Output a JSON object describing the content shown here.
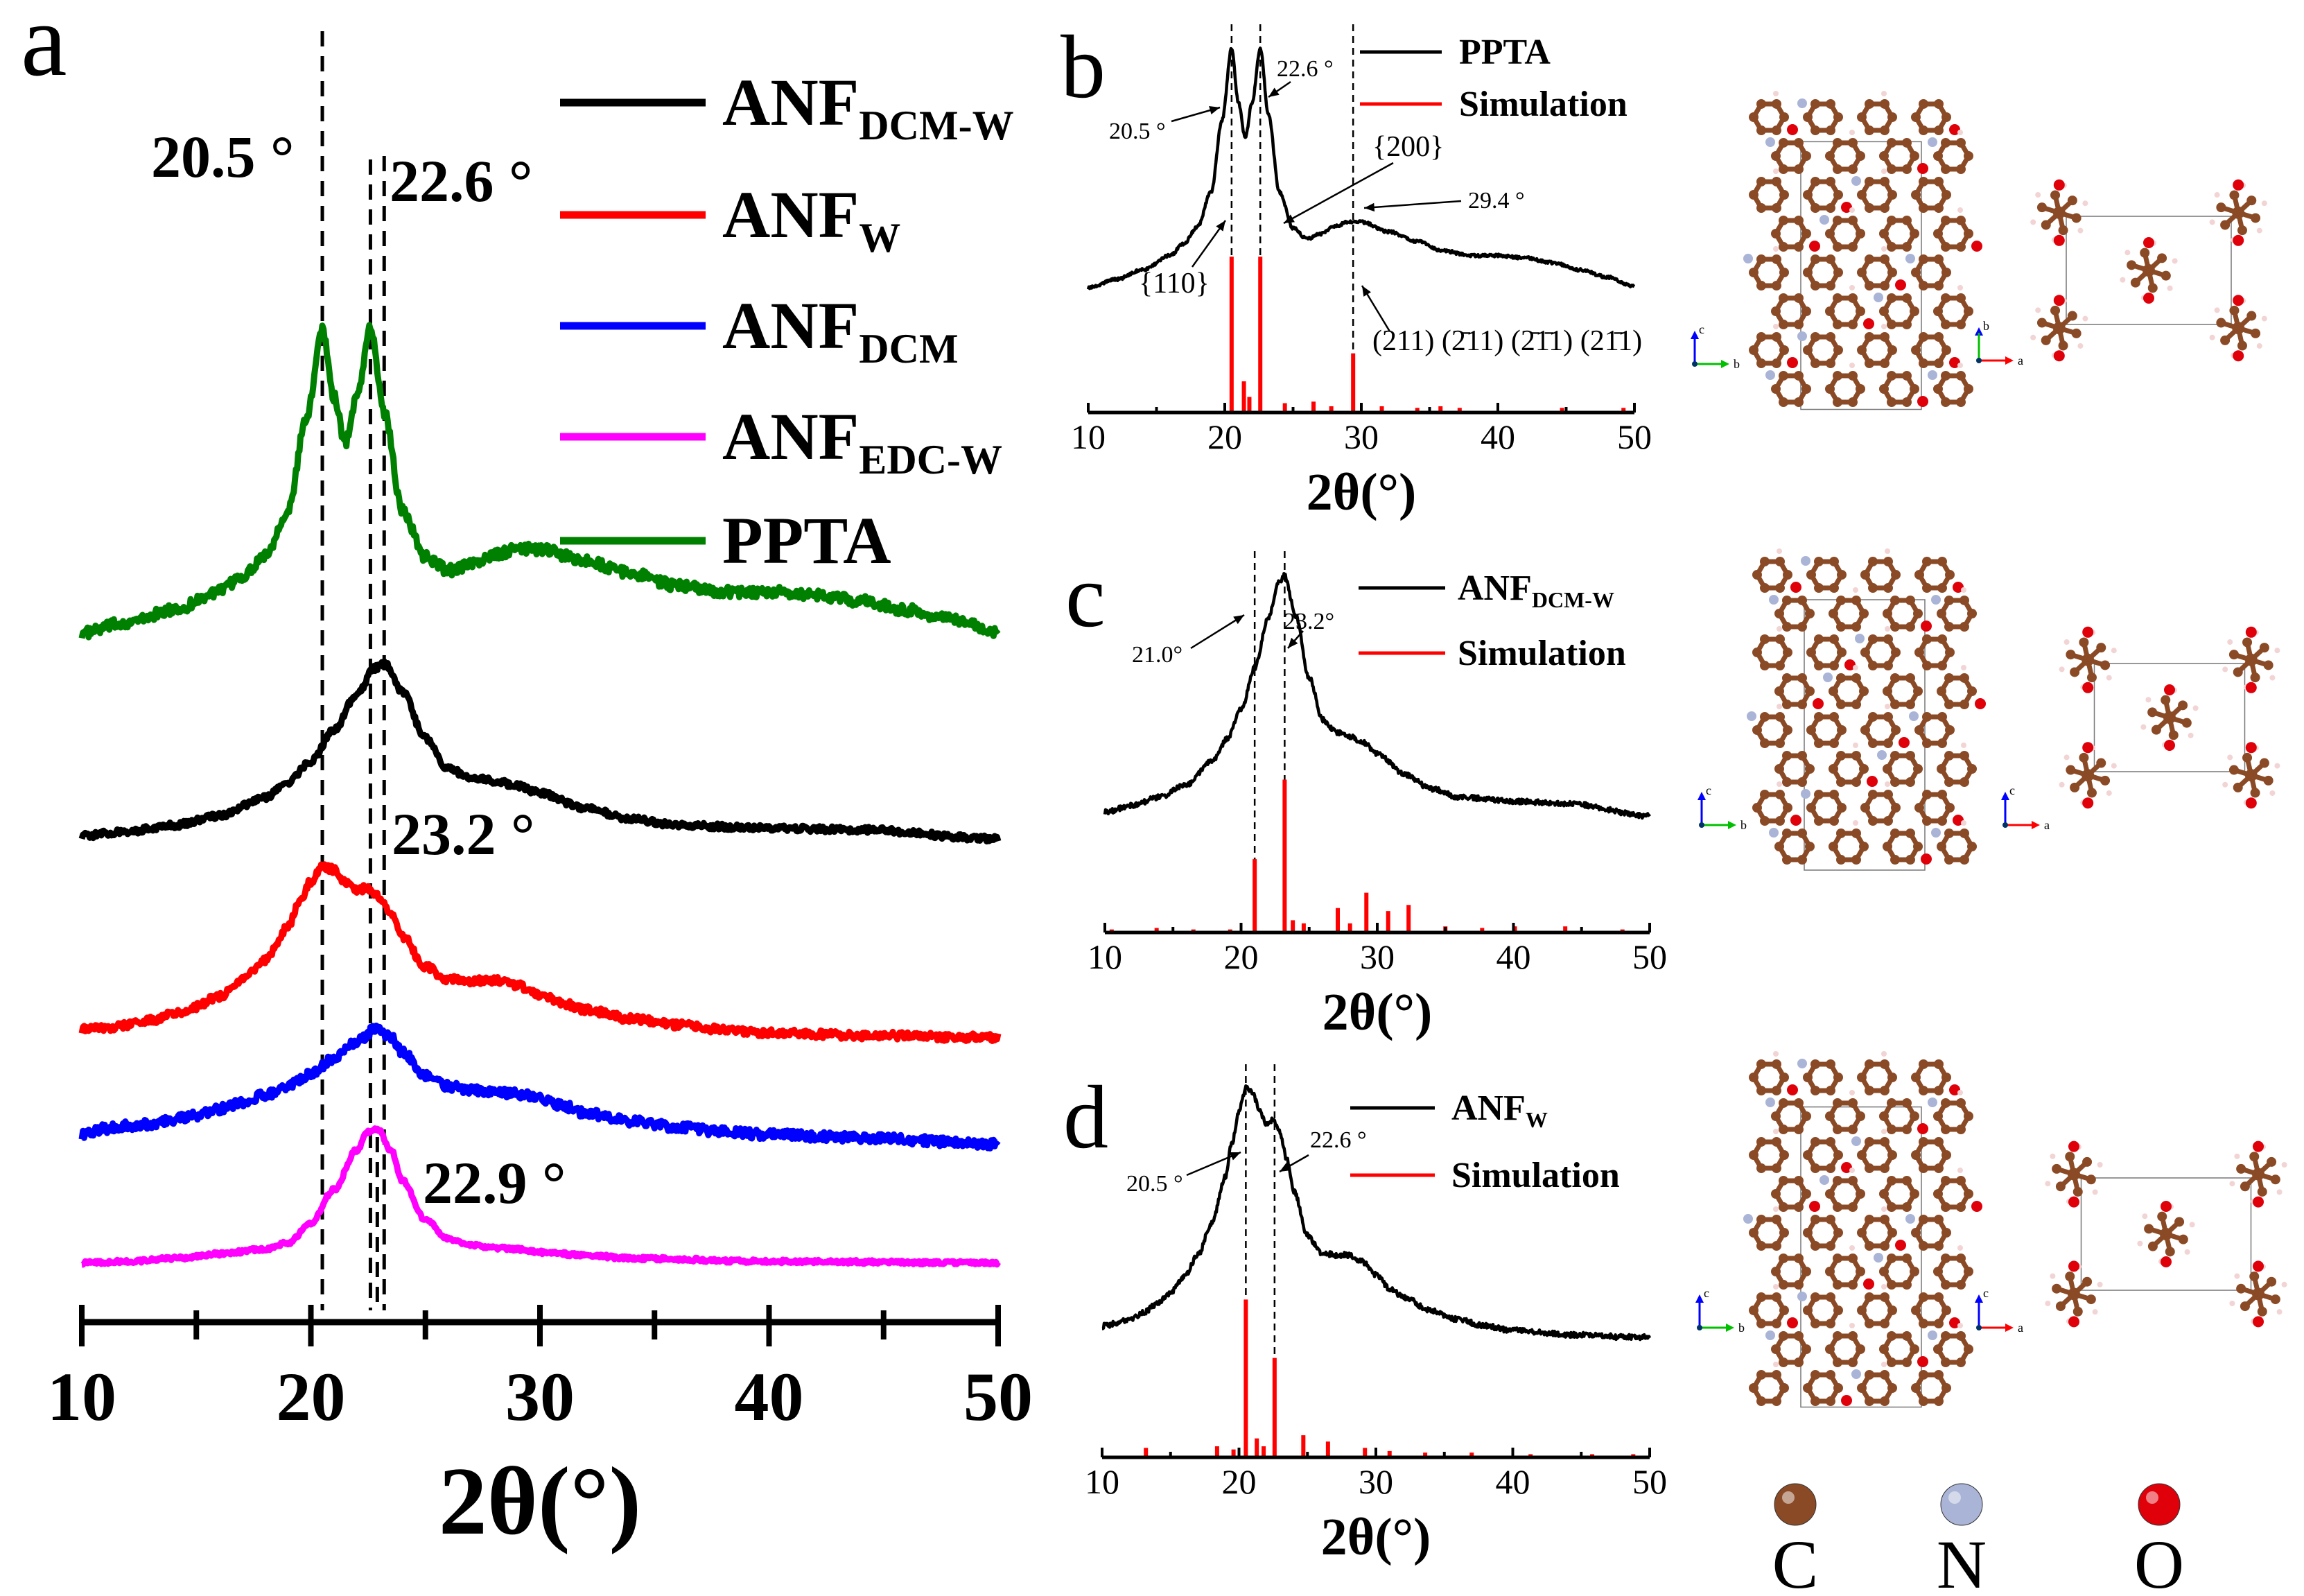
{
  "panels": {
    "a": {
      "label": "a"
    },
    "b": {
      "label": "b"
    },
    "c": {
      "label": "c"
    },
    "d": {
      "label": "d"
    }
  },
  "colors": {
    "black": "#000000",
    "red": "#ff0000",
    "blue": "#0000ff",
    "magenta": "#ff00ff",
    "green": "#008000",
    "carbon": "#8b4a26",
    "nitrogen": "#aab4d6",
    "oxygen": "#e0000a",
    "hydrogen": "#f2d4d4"
  },
  "atom_legend": [
    {
      "symbol": "C",
      "color": "#8b4a26"
    },
    {
      "symbol": "N",
      "color": "#aab4d6"
    },
    {
      "symbol": "O",
      "color": "#e0000a"
    }
  ],
  "structures": {
    "b": {
      "left_axes": [
        "c",
        "b"
      ],
      "right_axes": [
        "b",
        "a"
      ]
    },
    "c": {
      "left_axes": [
        "c",
        "b"
      ],
      "right_axes": [
        "c",
        "a"
      ]
    },
    "d": {
      "left_axes": [
        "c",
        "b"
      ],
      "right_axes": [
        "c",
        "a"
      ]
    }
  },
  "chart_data": [
    {
      "panel": "a",
      "type": "line",
      "xlabel": "2θ(°)",
      "ylabel": "",
      "xlim": [
        10,
        50
      ],
      "xticks": [
        "10",
        "20",
        "30",
        "40",
        "50"
      ],
      "grid": false,
      "legend_position": "top-right",
      "legend": [
        {
          "base": "ANF",
          "sub": "DCM-W",
          "color": "#000000"
        },
        {
          "base": "ANF",
          "sub": "W",
          "color": "#ff0000"
        },
        {
          "base": "ANF",
          "sub": "DCM",
          "color": "#0000ff"
        },
        {
          "base": "ANF",
          "sub": "EDC-W",
          "color": "#ff00ff"
        },
        {
          "base": "PPTA",
          "sub": "",
          "color": "#008000"
        }
      ],
      "reference_lines": [
        20.5,
        22.6,
        23.2,
        22.9
      ],
      "annotations": [
        "20.5 °",
        "22.6 °",
        "23.2 °",
        "22.9 °"
      ],
      "series": [
        {
          "label": "PPTA",
          "color": "#008000",
          "offset": 4.3,
          "noise": 0.035,
          "x": [
            10,
            12,
            14,
            16,
            17,
            18,
            19,
            19.8,
            20.5,
            21,
            21.5,
            22,
            22.6,
            23.2,
            24,
            25,
            26,
            27,
            28,
            29,
            30,
            32,
            34,
            36,
            38,
            40,
            42,
            44,
            46,
            48,
            50
          ],
          "y": [
            0.05,
            0.12,
            0.2,
            0.32,
            0.42,
            0.56,
            0.85,
            1.45,
            2.05,
            1.6,
            1.3,
            1.6,
            2.05,
            1.5,
            0.85,
            0.55,
            0.46,
            0.5,
            0.56,
            0.6,
            0.6,
            0.52,
            0.44,
            0.36,
            0.32,
            0.32,
            0.3,
            0.26,
            0.2,
            0.14,
            0.06
          ]
        },
        {
          "label": "ANF_DCM-W",
          "color": "#000000",
          "offset": 3.0,
          "noise": 0.02,
          "x": [
            10,
            12,
            14,
            16,
            18,
            19,
            20,
            21,
            22,
            22.8,
            23.2,
            24,
            25,
            26,
            27,
            28,
            29,
            30,
            32,
            34,
            36,
            40,
            44,
            50
          ],
          "y": [
            0.02,
            0.05,
            0.09,
            0.15,
            0.27,
            0.37,
            0.51,
            0.71,
            0.95,
            1.12,
            1.15,
            0.96,
            0.66,
            0.46,
            0.4,
            0.38,
            0.35,
            0.3,
            0.2,
            0.13,
            0.09,
            0.07,
            0.06,
            0.0
          ]
        },
        {
          "label": "ANF_W",
          "color": "#ff0000",
          "offset": 1.7,
          "noise": 0.025,
          "x": [
            10,
            11,
            12,
            13,
            14,
            15,
            16,
            17,
            18,
            19,
            19.5,
            20,
            20.5,
            21,
            21.5,
            22,
            22.5,
            23,
            23.5,
            24,
            25,
            26,
            27,
            28,
            29,
            30,
            31,
            32,
            34,
            36,
            38,
            40,
            42,
            44,
            46,
            48,
            50
          ],
          "y": [
            0.05,
            0.06,
            0.08,
            0.11,
            0.15,
            0.2,
            0.27,
            0.37,
            0.51,
            0.72,
            0.88,
            1.02,
            1.12,
            1.1,
            1.02,
            0.96,
            0.98,
            0.92,
            0.8,
            0.66,
            0.46,
            0.38,
            0.37,
            0.37,
            0.34,
            0.28,
            0.22,
            0.18,
            0.12,
            0.08,
            0.05,
            0.03,
            0.02,
            0.01,
            0.01,
            0.0,
            0.0
          ]
        },
        {
          "label": "ANF_DCM",
          "color": "#0000ff",
          "offset": 1.0,
          "noise": 0.03,
          "x": [
            10,
            11,
            12,
            13,
            14,
            15,
            16,
            17,
            18,
            19,
            20,
            21,
            22,
            22.9,
            23.5,
            24,
            25,
            26,
            27,
            28,
            29,
            30,
            31,
            32,
            34,
            36,
            38,
            40,
            44,
            50
          ],
          "y": [
            0.06,
            0.1,
            0.12,
            0.13,
            0.16,
            0.19,
            0.23,
            0.27,
            0.32,
            0.38,
            0.46,
            0.56,
            0.67,
            0.76,
            0.7,
            0.6,
            0.45,
            0.38,
            0.35,
            0.34,
            0.33,
            0.3,
            0.25,
            0.2,
            0.15,
            0.11,
            0.08,
            0.06,
            0.04,
            0.0
          ]
        },
        {
          "label": "ANF_EDC-W",
          "color": "#ff00ff",
          "offset": 0.22,
          "noise": 0.012,
          "x": [
            10,
            12,
            14,
            16,
            18,
            19,
            20,
            21,
            22,
            22.5,
            22.9,
            23.5,
            24,
            25,
            26,
            27,
            28,
            29,
            30,
            32,
            34,
            40,
            50
          ],
          "y": [
            0.0,
            0.01,
            0.03,
            0.06,
            0.09,
            0.13,
            0.26,
            0.48,
            0.74,
            0.86,
            0.88,
            0.74,
            0.54,
            0.28,
            0.16,
            0.12,
            0.1,
            0.09,
            0.07,
            0.05,
            0.03,
            0.01,
            0.0
          ]
        }
      ]
    },
    {
      "panel": "b",
      "type": "line",
      "xlabel": "2θ(°)",
      "xlim": [
        10,
        50
      ],
      "xticks": [
        "10",
        "20",
        "30",
        "40",
        "50"
      ],
      "legend_position": "top-right",
      "legend": [
        {
          "base": "PPTA",
          "sub": "",
          "color": "#000000"
        },
        {
          "base": "Simulation",
          "sub": "",
          "color": "#ff0000"
        }
      ],
      "reference_lines": [
        20.5,
        22.6,
        29.4
      ],
      "annotations": [
        "20.5 °",
        "22.6 °",
        "29.4 °",
        "{200}",
        "{110}",
        "(211) (2̄11) (2̄1̄1) (21̄1)"
      ],
      "experimental": {
        "x": [
          10,
          12,
          14,
          16,
          17,
          18,
          19,
          19.8,
          20.5,
          21,
          21.5,
          22,
          22.6,
          23.2,
          24,
          25,
          26,
          27,
          28,
          29,
          30,
          32,
          34,
          36,
          38,
          40,
          42,
          44,
          46,
          48,
          50
        ],
        "y": [
          0.05,
          0.12,
          0.2,
          0.32,
          0.42,
          0.56,
          0.85,
          1.45,
          2.05,
          1.6,
          1.3,
          1.6,
          2.05,
          1.5,
          0.85,
          0.55,
          0.46,
          0.5,
          0.56,
          0.6,
          0.6,
          0.52,
          0.44,
          0.36,
          0.32,
          0.32,
          0.3,
          0.26,
          0.2,
          0.14,
          0.06
        ]
      },
      "simulation": {
        "x": [
          20.5,
          21.4,
          21.8,
          22.6,
          24.4,
          26.5,
          27.8,
          29.4,
          31.5,
          34.1,
          35.8,
          37.2,
          44.7,
          49.2
        ],
        "y": [
          1.0,
          0.2,
          0.1,
          1.0,
          0.06,
          0.07,
          0.04,
          0.38,
          0.04,
          0.03,
          0.04,
          0.03,
          0.03,
          0.03
        ]
      }
    },
    {
      "panel": "c",
      "type": "line",
      "xlabel": "2θ(°)",
      "xlim": [
        10,
        50
      ],
      "xticks": [
        "10",
        "20",
        "30",
        "40",
        "50"
      ],
      "legend_position": "top-right",
      "legend": [
        {
          "base": "ANF",
          "sub": "DCM-W",
          "color": "#000000"
        },
        {
          "base": "Simulation",
          "sub": "",
          "color": "#ff0000"
        }
      ],
      "reference_lines": [
        21.0,
        23.2
      ],
      "annotations": [
        "21.0°",
        "23.2°"
      ],
      "experimental": {
        "x": [
          10,
          12,
          14,
          16,
          18,
          19,
          20,
          21,
          22,
          22.8,
          23.2,
          24,
          25,
          26,
          27,
          28,
          29,
          30,
          32,
          34,
          36,
          40,
          44,
          50
        ],
        "y": [
          0.02,
          0.05,
          0.09,
          0.15,
          0.27,
          0.37,
          0.51,
          0.71,
          0.95,
          1.12,
          1.15,
          0.96,
          0.66,
          0.46,
          0.4,
          0.38,
          0.35,
          0.3,
          0.2,
          0.13,
          0.09,
          0.07,
          0.06,
          0.0
        ]
      },
      "simulation": {
        "x": [
          10.5,
          13.8,
          16.5,
          19.2,
          21.0,
          23.2,
          23.8,
          24.6,
          27.1,
          28.0,
          29.2,
          30.8,
          32.3,
          35.0,
          37.7,
          40.1,
          43.8,
          48.0
        ],
        "y": [
          0.02,
          0.03,
          0.02,
          0.02,
          0.48,
          1.0,
          0.08,
          0.06,
          0.16,
          0.06,
          0.26,
          0.14,
          0.18,
          0.04,
          0.03,
          0.04,
          0.04,
          0.02
        ]
      }
    },
    {
      "panel": "d",
      "type": "line",
      "xlabel": "2θ(°)",
      "xlim": [
        10,
        50
      ],
      "xticks": [
        "10",
        "20",
        "30",
        "40",
        "50"
      ],
      "legend_position": "top-right",
      "legend": [
        {
          "base": "ANF",
          "sub": "W",
          "color": "#000000"
        },
        {
          "base": "Simulation",
          "sub": "",
          "color": "#ff0000"
        }
      ],
      "reference_lines": [
        20.5,
        22.6
      ],
      "annotations": [
        "20.5 °",
        "22.6 °"
      ],
      "experimental": {
        "x": [
          10,
          11,
          12,
          13,
          14,
          15,
          16,
          17,
          18,
          19,
          19.5,
          20,
          20.5,
          21,
          21.5,
          22,
          22.5,
          23,
          23.5,
          24,
          25,
          26,
          27,
          28,
          29,
          30,
          31,
          32,
          34,
          36,
          38,
          40,
          42,
          44,
          46,
          48,
          50
        ],
        "y": [
          0.05,
          0.06,
          0.08,
          0.11,
          0.15,
          0.2,
          0.27,
          0.37,
          0.51,
          0.72,
          0.88,
          1.02,
          1.12,
          1.1,
          1.02,
          0.96,
          0.98,
          0.92,
          0.8,
          0.66,
          0.46,
          0.38,
          0.37,
          0.37,
          0.34,
          0.28,
          0.22,
          0.18,
          0.12,
          0.08,
          0.05,
          0.03,
          0.02,
          0.01,
          0.01,
          0.0,
          0.0
        ]
      },
      "simulation": {
        "x": [
          13.2,
          18.4,
          19.6,
          20.5,
          21.3,
          21.8,
          22.6,
          24.7,
          26.5,
          29.2,
          31.0,
          33.6,
          37.0,
          41.3,
          45.8,
          48.8
        ],
        "y": [
          0.06,
          0.07,
          0.05,
          1.0,
          0.12,
          0.07,
          0.63,
          0.14,
          0.1,
          0.06,
          0.04,
          0.03,
          0.03,
          0.02,
          0.02,
          0.02
        ]
      }
    }
  ]
}
